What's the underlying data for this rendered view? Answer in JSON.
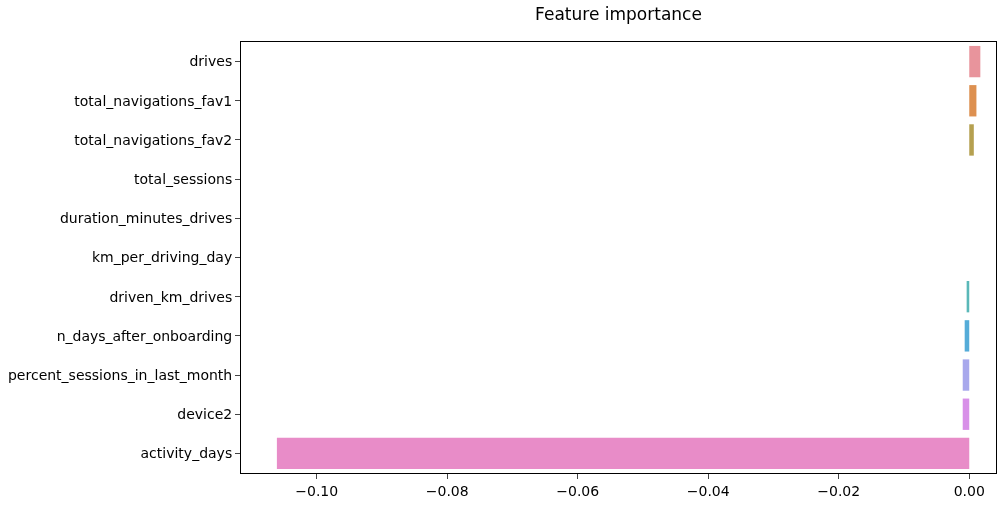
{
  "chart_data": {
    "type": "bar",
    "orientation": "horizontal",
    "title": "Feature importance",
    "categories": [
      "drives",
      "total_navigations_fav1",
      "total_navigations_fav2",
      "total_sessions",
      "duration_minutes_drives",
      "km_per_driving_day",
      "driven_km_drives",
      "n_days_after_onboarding",
      "percent_sessions_in_last_month",
      "device2",
      "activity_days"
    ],
    "values": [
      0.0017,
      0.0011,
      0.0007,
      0,
      0,
      0,
      -0.0004,
      -0.0007,
      -0.001,
      -0.001,
      -0.1061
    ],
    "colors": [
      "#e8949c",
      "#dd9050",
      "#b5a050",
      null,
      null,
      null,
      "#5ab8b8",
      "#55acd8",
      "#a8a8ec",
      "#d890e8",
      "#e88cc8"
    ],
    "xlim": [
      -0.1116,
      0.0041
    ],
    "xticks": [
      {
        "value": -0.1,
        "label": "−0.10"
      },
      {
        "value": -0.08,
        "label": "−0.08"
      },
      {
        "value": -0.06,
        "label": "−0.06"
      },
      {
        "value": -0.04,
        "label": "−0.04"
      },
      {
        "value": -0.02,
        "label": "−0.02"
      },
      {
        "value": 0,
        "label": "0.00"
      }
    ],
    "legend": false
  }
}
